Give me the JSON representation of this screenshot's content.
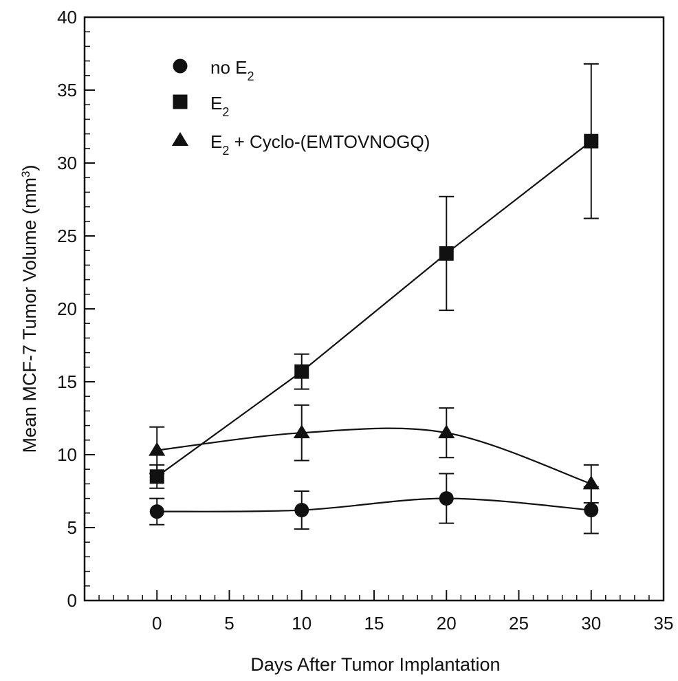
{
  "chart_data": {
    "type": "line",
    "xlabel": "Days After Tumor Implantation",
    "ylabel_parts": {
      "main": "Mean MCF-7 Tumor Volume (mm",
      "sup": "3",
      "end": ")"
    },
    "xlim": [
      -5,
      35
    ],
    "ylim": [
      0,
      40
    ],
    "x_ticks": [
      0,
      5,
      10,
      15,
      20,
      25,
      30,
      35
    ],
    "y_ticks": [
      0,
      5,
      10,
      15,
      20,
      25,
      30,
      35,
      40
    ],
    "x_minor_step": 1,
    "y_minor_step": 1,
    "grid": false,
    "legend_position": "top-left",
    "series": [
      {
        "name": "no E2",
        "legend": {
          "base": "no E",
          "sub": "2",
          "rest": ""
        },
        "marker": "circle",
        "x": [
          0,
          10,
          20,
          30
        ],
        "y": [
          6.1,
          6.2,
          7.0,
          6.2
        ],
        "err": [
          0.9,
          1.3,
          1.7,
          1.6
        ]
      },
      {
        "name": "E2",
        "legend": {
          "base": "E",
          "sub": "2",
          "rest": ""
        },
        "marker": "square",
        "x": [
          0,
          10,
          20,
          30
        ],
        "y": [
          8.5,
          15.7,
          23.8,
          31.5
        ],
        "err": [
          0.8,
          1.2,
          3.9,
          5.3
        ]
      },
      {
        "name": "E2 + Cyclo-(EMTOVNOGQ)",
        "legend": {
          "base": "E",
          "sub": "2",
          "rest": " + Cyclo-(EMTOVNOGQ)"
        },
        "marker": "triangle",
        "x": [
          0,
          10,
          20,
          30
        ],
        "y": [
          10.3,
          11.5,
          11.5,
          8.0
        ],
        "err": [
          1.6,
          1.9,
          1.7,
          1.3
        ]
      }
    ]
  }
}
